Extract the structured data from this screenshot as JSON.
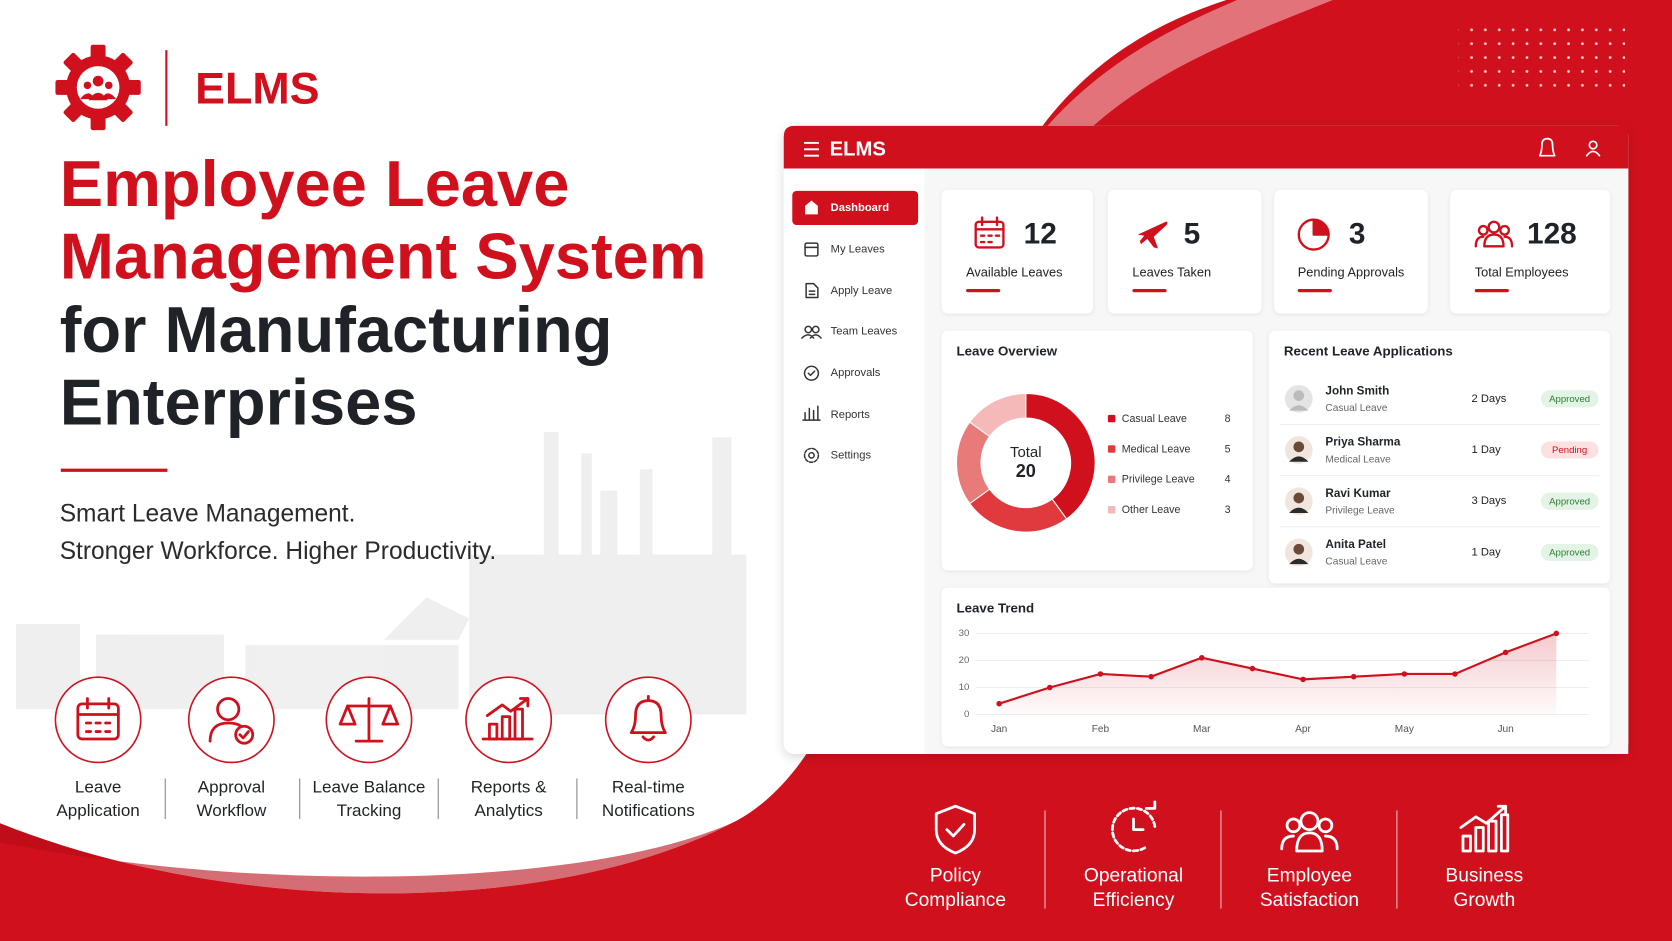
{
  "brand": {
    "name": "ELMS"
  },
  "headline": {
    "lines": [
      "Employee Leave",
      "Management System",
      "for Manufacturing",
      "Enterprises"
    ]
  },
  "tagline": [
    "Smart Leave Management.",
    "Stronger Workforce. Higher Productivity."
  ],
  "features": [
    [
      "Leave",
      "Application"
    ],
    [
      "Approval",
      "Workflow"
    ],
    [
      "Leave Balance",
      "Tracking"
    ],
    [
      "Reports &",
      "Analytics"
    ],
    [
      "Real-time",
      "Notifications"
    ]
  ],
  "benefits": [
    [
      "Policy",
      "Compliance"
    ],
    [
      "Operational",
      "Efficiency"
    ],
    [
      "Employee",
      "Satisfaction"
    ],
    [
      "Business",
      "Growth"
    ]
  ],
  "dashboard": {
    "app_name": "ELMS",
    "nav": [
      "Dashboard",
      "My Leaves",
      "Apply Leave",
      "Team Leaves",
      "Approvals",
      "Reports",
      "Settings"
    ],
    "stats": [
      {
        "value": 12,
        "label": "Available Leaves"
      },
      {
        "value": 5,
        "label": "Leaves Taken"
      },
      {
        "value": 3,
        "label": "Pending Approvals"
      },
      {
        "value": 128,
        "label": "Total Employees"
      }
    ],
    "recent": {
      "title": "Recent Leave Applications",
      "rows": [
        {
          "name": "John Smith",
          "type": "Casual Leave",
          "duration": "2 Days",
          "status": "Approved",
          "status_color": "#2e7d32",
          "status_bg": "#e3f3e6"
        },
        {
          "name": "Priya Sharma",
          "type": "Medical Leave",
          "duration": "1 Day",
          "status": "Pending",
          "status_color": "#d0101c",
          "status_bg": "#fde1e1"
        },
        {
          "name": "Ravi Kumar",
          "type": "Privilege Leave",
          "duration": "3 Days",
          "status": "Approved",
          "status_color": "#2e7d32",
          "status_bg": "#e3f3e6"
        },
        {
          "name": "Anita Patel",
          "type": "Casual Leave",
          "duration": "1 Day",
          "status": "Approved",
          "status_color": "#2e7d32",
          "status_bg": "#e3f3e6"
        }
      ]
    }
  },
  "chart_data": [
    {
      "type": "donut",
      "title": "Leave Overview",
      "center_label": "Total",
      "center_value": 20,
      "categories": [
        "Casual Leave",
        "Medical Leave",
        "Privilege Leave",
        "Other Leave"
      ],
      "values": [
        8,
        5,
        4,
        3
      ],
      "colors": [
        "#d0101c",
        "#e0393e",
        "#e87a7a",
        "#f5b9b9"
      ]
    },
    {
      "type": "line",
      "title": "Leave Trend",
      "categories": [
        "Jan",
        null,
        "Feb",
        null,
        "Mar",
        null,
        "Apr",
        null,
        "May",
        null,
        "Jun",
        null
      ],
      "values": [
        4,
        10,
        15,
        14,
        21,
        17,
        13,
        14,
        15,
        15,
        23,
        30
      ],
      "color": "#d0101c",
      "ylim": [
        0,
        30
      ],
      "yticks": [
        0,
        10,
        20,
        30
      ],
      "grid": true
    }
  ]
}
